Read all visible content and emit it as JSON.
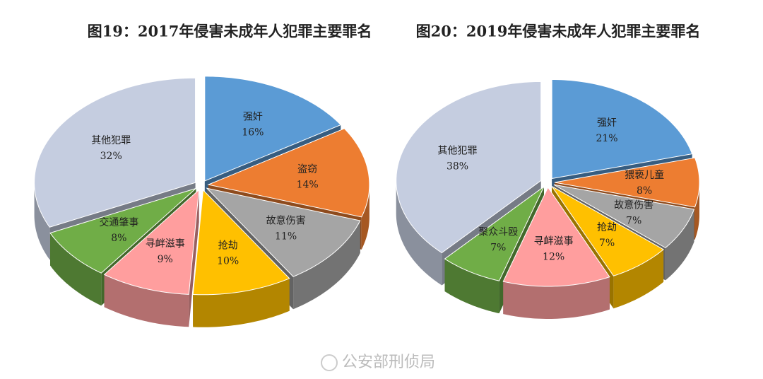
{
  "chart_data": [
    {
      "type": "pie",
      "title": "图19：2017年侵害未成年人犯罪主要罪名",
      "categories": [
        "强奸",
        "盗窃",
        "故意伤害",
        "抢劫",
        "寻衅滋事",
        "交通肇事",
        "其他犯罪"
      ],
      "values": [
        16,
        14,
        11,
        10,
        9,
        8,
        32
      ],
      "value_labels": [
        "16%",
        "14%",
        "11%",
        "10%",
        "9%",
        "8%",
        "32%"
      ],
      "colors": [
        "#5b9bd5",
        "#ed7d31",
        "#a5a5a5",
        "#ffc000",
        "#ff9e9e",
        "#70ad47",
        "#c5cde0"
      ]
    },
    {
      "type": "pie",
      "title": "图20：2019年侵害未成年人犯罪主要罪名",
      "categories": [
        "强奸",
        "猥亵儿童",
        "故意伤害",
        "抢劫",
        "寻衅滋事",
        "聚众斗殴",
        "其他犯罪"
      ],
      "values": [
        21,
        8,
        7,
        7,
        12,
        7,
        38
      ],
      "value_labels": [
        "21%",
        "8%",
        "7%",
        "7%",
        "12%",
        "7%",
        "38%"
      ],
      "colors": [
        "#5b9bd5",
        "#ed7d31",
        "#a5a5a5",
        "#ffc000",
        "#ff9e9e",
        "#70ad47",
        "#c5cde0"
      ]
    }
  ],
  "watermark": "公安部刑侦局"
}
